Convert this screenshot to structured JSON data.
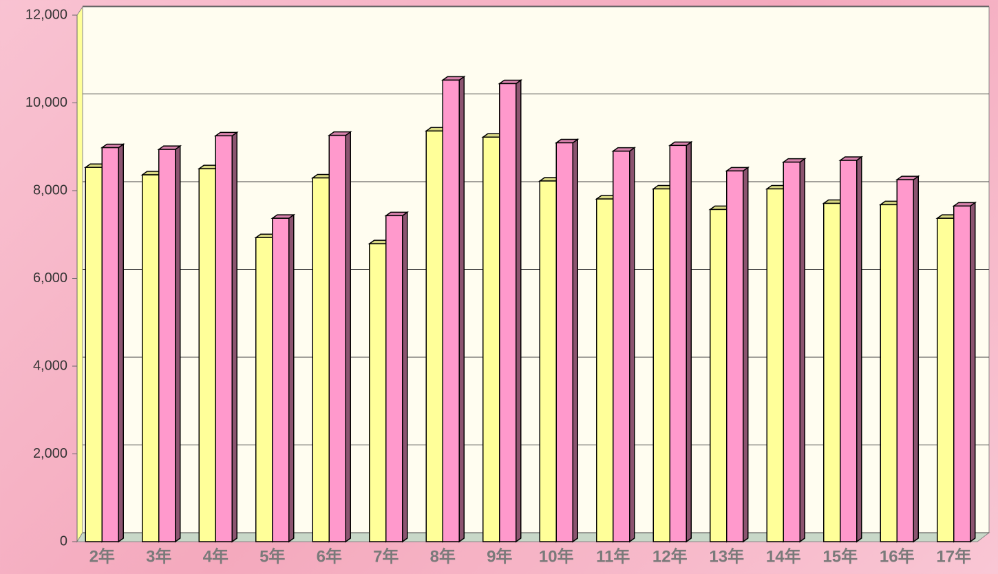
{
  "chart_data": {
    "type": "bar3d",
    "categories": [
      "2年",
      "3年",
      "4年",
      "5年",
      "6年",
      "7年",
      "8年",
      "9年",
      "10年",
      "11年",
      "12年",
      "13年",
      "14年",
      "15年",
      "16年",
      "17年"
    ],
    "series": [
      {
        "color": "#ffff99",
        "values": [
          8530,
          8360,
          8500,
          6930,
          8290,
          6790,
          9360,
          9220,
          8220,
          7810,
          8040,
          7570,
          8040,
          7710,
          7680,
          7370
        ]
      },
      {
        "color": "#ff99cc",
        "values": [
          8980,
          8940,
          9250,
          7370,
          9260,
          7430,
          10520,
          10440,
          9090,
          8900,
          9030,
          8450,
          8650,
          8690,
          8250,
          7650
        ]
      }
    ],
    "ylim": [
      0,
      12000
    ],
    "yticks": [
      0,
      {
        "value": 2000,
        "label": "2,000"
      },
      {
        "value": 4000,
        "label": "4,000"
      },
      {
        "value": 6000,
        "label": "6,000"
      },
      {
        "value": 8000,
        "label": "8,000"
      },
      {
        "value": 10000,
        "label": "10,000"
      },
      {
        "value": 12000,
        "label": "12,000"
      }
    ],
    "grid": true
  }
}
